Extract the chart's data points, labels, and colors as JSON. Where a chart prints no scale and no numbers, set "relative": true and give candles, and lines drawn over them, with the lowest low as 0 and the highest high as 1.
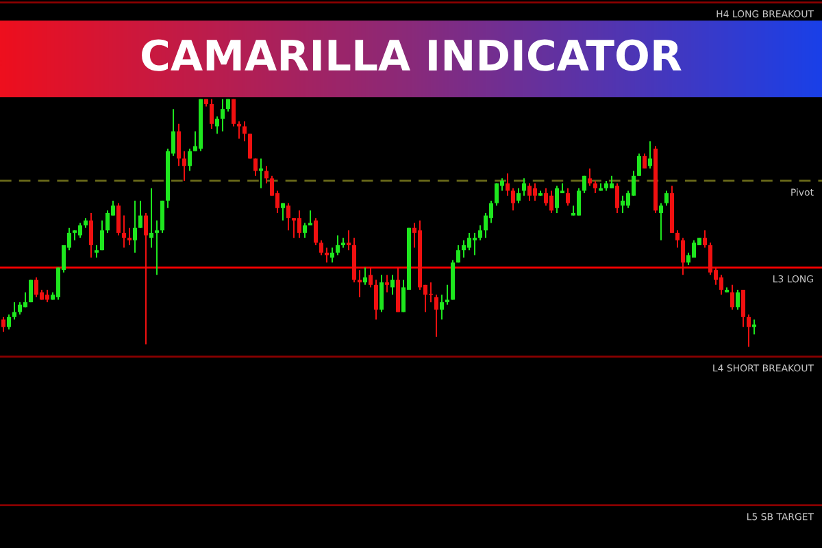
{
  "chart_data": {
    "type": "candlestick",
    "title": "CAMARILLA INDICATOR",
    "relative": true,
    "colors": [
      "#f01010",
      "#1ee61e",
      "#1ee61e",
      "#1ee61e",
      "#1ee61e",
      "#1ee61e",
      "#f01010",
      "#f01010",
      "#f01010",
      "#1ee61e",
      "#1ee61e",
      "#1ee61e",
      "#1ee61e",
      "#1ee61e",
      "#1ee61e",
      "#1ee61e",
      "#f01010",
      "#1ee61e",
      "#1ee61e",
      "#1ee61e",
      "#1ee61e",
      "#f01010",
      "#f01010",
      "#f01010",
      "#1ee61e",
      "#1ee61e",
      "#f01010",
      "#1ee61e",
      "#1ee61e",
      "#1ee61e",
      "#1ee61e",
      "#1ee61e",
      "#f01010",
      "#f01010",
      "#1ee61e",
      "#1ee61e",
      "#1ee61e",
      "#f01010",
      "#f01010",
      "#1ee61e",
      "#1ee61e",
      "#1ee61e",
      "#f01010",
      "#f01010",
      "#f01010",
      "#f01010",
      "#f01010",
      "#1ee61e",
      "#f01010",
      "#f01010",
      "#f01010",
      "#1ee61e",
      "#f01010",
      "#f01010",
      "#f01010",
      "#1ee61e",
      "#1ee61e",
      "#f01010",
      "#f01010",
      "#f01010",
      "#1ee61e",
      "#1ee61e",
      "#1ee61e",
      "#f01010",
      "#f01010",
      "#f01010",
      "#1ee61e",
      "#f01010",
      "#f01010",
      "#1ee61e",
      "#f01010",
      "#1ee61e",
      "#f01010",
      "#1ee61e",
      "#1ee61e",
      "#f01010",
      "#f01010",
      "#f01010",
      "#f01010",
      "#f01010",
      "#1ee61e",
      "#1ee61e",
      "#1ee61e",
      "#1ee61e",
      "#1ee61e",
      "#1ee61e",
      "#1ee61e",
      "#1ee61e",
      "#1ee61e",
      "#1ee61e",
      "#1ee61e",
      "#1ee61e",
      "#f01010",
      "#f01010",
      "#1ee61e",
      "#1ee61e",
      "#f01010",
      "#f01010",
      "#1ee61e",
      "#f01010",
      "#f01010",
      "#1ee61e",
      "#1ee61e",
      "#f01010",
      "#1ee61e",
      "#1ee61e",
      "#1ee61e",
      "#f01010",
      "#f01010",
      "#1ee61e",
      "#1ee61e",
      "#1ee61e",
      "#f01010",
      "#1ee61e",
      "#1ee61e",
      "#1ee61e",
      "#1ee61e",
      "#f01010",
      "#1ee61e",
      "#f01010",
      "#1ee61e",
      "#1ee61e",
      "#f01010",
      "#f01010",
      "#f01010",
      "#1ee61e",
      "#1ee61e",
      "#1ee61e",
      "#f01010",
      "#f01010",
      "#f01010",
      "#f01010",
      "#1ee61e",
      "#f01010",
      "#1ee61e",
      "#f01010",
      "#f01010",
      "#1ee61e"
    ],
    "categories": [
      null,
      null,
      null,
      null,
      null,
      null,
      null,
      null,
      null,
      null,
      null,
      null,
      null,
      null,
      null,
      null,
      null,
      null,
      null,
      null,
      null,
      null,
      null,
      null,
      null,
      null,
      null,
      null,
      null,
      null,
      null,
      null,
      null,
      null,
      null,
      null,
      null,
      null,
      null,
      null,
      null,
      null,
      null,
      null,
      null,
      null,
      null,
      null,
      null,
      null,
      null,
      null,
      null,
      null,
      null,
      null,
      null,
      null,
      null,
      null,
      null,
      null,
      null,
      null,
      null,
      null,
      null,
      null,
      null,
      null,
      null,
      null,
      null,
      null,
      null,
      null,
      null,
      null,
      null,
      null,
      null,
      null,
      null,
      null,
      null,
      null,
      null,
      null,
      null,
      null,
      null,
      null,
      null,
      null,
      null,
      null,
      null,
      null,
      null,
      null,
      null,
      null,
      null,
      null,
      null,
      null,
      null,
      null,
      null,
      null,
      null,
      null,
      null,
      null,
      null,
      null,
      null,
      null,
      null,
      null,
      null,
      null,
      null,
      null,
      null,
      null,
      null,
      null,
      null,
      null,
      null,
      null,
      null,
      null,
      null,
      null,
      null,
      null
    ],
    "ohlc": [
      [
        0.11,
        0.12,
        0.06,
        0.08
      ],
      [
        0.08,
        0.13,
        0.07,
        0.12
      ],
      [
        0.12,
        0.18,
        0.11,
        0.14
      ],
      [
        0.14,
        0.18,
        0.13,
        0.17
      ],
      [
        0.16,
        0.22,
        0.16,
        0.18
      ],
      [
        0.18,
        0.27,
        0.18,
        0.27
      ],
      [
        0.27,
        0.28,
        0.2,
        0.21
      ],
      [
        0.22,
        0.23,
        0.19,
        0.19
      ],
      [
        0.21,
        0.23,
        0.18,
        0.19
      ],
      [
        0.19,
        0.22,
        0.19,
        0.21
      ],
      [
        0.2,
        0.32,
        0.19,
        0.32
      ],
      [
        0.31,
        0.41,
        0.3,
        0.41
      ],
      [
        0.4,
        0.48,
        0.39,
        0.46
      ],
      [
        0.46,
        0.47,
        0.43,
        0.47
      ],
      [
        0.45,
        0.5,
        0.44,
        0.49
      ],
      [
        0.49,
        0.52,
        0.48,
        0.51
      ],
      [
        0.51,
        0.54,
        0.36,
        0.41
      ],
      [
        0.38,
        0.41,
        0.36,
        0.39
      ],
      [
        0.39,
        0.51,
        0.39,
        0.47
      ],
      [
        0.47,
        0.55,
        0.46,
        0.54
      ],
      [
        0.53,
        0.59,
        0.53,
        0.57
      ],
      [
        0.57,
        0.58,
        0.45,
        0.46
      ],
      [
        0.46,
        0.53,
        0.4,
        0.44
      ],
      [
        0.44,
        0.48,
        0.41,
        0.43
      ],
      [
        0.43,
        0.59,
        0.38,
        0.48
      ],
      [
        0.48,
        0.59,
        0.48,
        0.53
      ],
      [
        0.53,
        0.54,
        0.01,
        0.45
      ],
      [
        0.44,
        0.64,
        0.4,
        0.46
      ],
      [
        0.46,
        0.51,
        0.29,
        0.47
      ],
      [
        0.47,
        0.59,
        0.46,
        0.59
      ],
      [
        0.59,
        0.8,
        0.56,
        0.79
      ],
      [
        0.78,
        0.96,
        0.77,
        0.87
      ],
      [
        0.87,
        0.9,
        0.73,
        0.76
      ],
      [
        0.76,
        0.79,
        0.67,
        0.73
      ],
      [
        0.73,
        0.8,
        0.71,
        0.79
      ],
      [
        0.79,
        0.87,
        0.79,
        0.81
      ],
      [
        0.8,
        1,
        0.79,
        1
      ],
      [
        1,
        1,
        0.97,
        0.98
      ],
      [
        0.98,
        1,
        0.88,
        0.9
      ],
      [
        0.89,
        0.93,
        0.86,
        0.92
      ],
      [
        0.92,
        1,
        0.87,
        0.96
      ],
      [
        0.96,
        1,
        0.95,
        1
      ],
      [
        1,
        1,
        0.89,
        0.9
      ],
      [
        0.9,
        0.91,
        0.84,
        0.89
      ],
      [
        0.89,
        0.91,
        0.83,
        0.86
      ],
      [
        0.86,
        0.86,
        0.76,
        0.76
      ],
      [
        0.76,
        0.76,
        0.69,
        0.71
      ],
      [
        0.71,
        0.76,
        0.64,
        0.72
      ],
      [
        0.71,
        0.73,
        0.66,
        0.68
      ],
      [
        0.68,
        0.69,
        0.61,
        0.61
      ],
      [
        0.62,
        0.63,
        0.54,
        0.56
      ],
      [
        0.56,
        0.58,
        0.51,
        0.58
      ],
      [
        0.57,
        0.58,
        0.47,
        0.52
      ],
      [
        0.52,
        0.52,
        0.44,
        0.51
      ],
      [
        0.52,
        0.55,
        0.44,
        0.46
      ],
      [
        0.46,
        0.5,
        0.44,
        0.49
      ],
      [
        0.49,
        0.55,
        0.49,
        0.5
      ],
      [
        0.51,
        0.52,
        0.41,
        0.42
      ],
      [
        0.42,
        0.43,
        0.37,
        0.38
      ],
      [
        0.38,
        0.4,
        0.34,
        0.37
      ],
      [
        0.36,
        0.4,
        0.34,
        0.38
      ],
      [
        0.38,
        0.45,
        0.37,
        0.41
      ],
      [
        0.41,
        0.44,
        0.4,
        0.42
      ],
      [
        0.42,
        0.47,
        0.39,
        0.41
      ],
      [
        0.41,
        0.44,
        0.26,
        0.27
      ],
      [
        0.27,
        0.31,
        0.2,
        0.26
      ],
      [
        0.26,
        0.32,
        0.25,
        0.28
      ],
      [
        0.29,
        0.32,
        0.24,
        0.25
      ],
      [
        0.25,
        0.27,
        0.11,
        0.15
      ],
      [
        0.15,
        0.29,
        0.14,
        0.26
      ],
      [
        0.26,
        0.29,
        0.22,
        0.25
      ],
      [
        0.24,
        0.29,
        0.21,
        0.27
      ],
      [
        0.27,
        0.32,
        0.14,
        0.14
      ],
      [
        0.14,
        0.27,
        0.14,
        0.24
      ],
      [
        0.23,
        0.48,
        0.23,
        0.48
      ],
      [
        0.48,
        0.5,
        0.4,
        0.46
      ],
      [
        0.47,
        0.51,
        0.23,
        0.24
      ],
      [
        0.25,
        0.25,
        0.14,
        0.21
      ],
      [
        0.21,
        0.26,
        0.18,
        0.21
      ],
      [
        0.2,
        0.21,
        0.04,
        0.15
      ],
      [
        0.15,
        0.21,
        0.11,
        0.18
      ],
      [
        0.18,
        0.25,
        0.17,
        0.19
      ],
      [
        0.19,
        0.35,
        0.19,
        0.34
      ],
      [
        0.34,
        0.41,
        0.34,
        0.39
      ],
      [
        0.39,
        0.43,
        0.36,
        0.41
      ],
      [
        0.4,
        0.46,
        0.39,
        0.44
      ],
      [
        0.43,
        0.46,
        0.37,
        0.44
      ],
      [
        0.44,
        0.49,
        0.43,
        0.47
      ],
      [
        0.47,
        0.54,
        0.44,
        0.53
      ],
      [
        0.52,
        0.59,
        0.5,
        0.58
      ],
      [
        0.58,
        0.66,
        0.57,
        0.66
      ],
      [
        0.65,
        0.68,
        0.63,
        0.67
      ],
      [
        0.66,
        0.7,
        0.61,
        0.63
      ],
      [
        0.63,
        0.64,
        0.55,
        0.58
      ],
      [
        0.59,
        0.64,
        0.58,
        0.62
      ],
      [
        0.63,
        0.68,
        0.61,
        0.66
      ],
      [
        0.65,
        0.66,
        0.59,
        0.61
      ],
      [
        0.64,
        0.66,
        0.59,
        0.61
      ],
      [
        0.61,
        0.63,
        0.61,
        0.62
      ],
      [
        0.62,
        0.64,
        0.57,
        0.58
      ],
      [
        0.61,
        0.63,
        0.54,
        0.55
      ],
      [
        0.56,
        0.65,
        0.54,
        0.64
      ],
      [
        0.62,
        0.66,
        0.62,
        0.63
      ],
      [
        0.62,
        0.64,
        0.57,
        0.58
      ],
      [
        0.53,
        0.57,
        0.53,
        0.54
      ],
      [
        0.53,
        0.64,
        0.53,
        0.63
      ],
      [
        0.63,
        0.69,
        0.62,
        0.69
      ],
      [
        0.68,
        0.72,
        0.65,
        0.66
      ],
      [
        0.66,
        0.67,
        0.62,
        0.64
      ],
      [
        0.63,
        0.66,
        0.63,
        0.64
      ],
      [
        0.64,
        0.67,
        0.63,
        0.66
      ],
      [
        0.64,
        0.69,
        0.64,
        0.66
      ],
      [
        0.65,
        0.66,
        0.54,
        0.56
      ],
      [
        0.57,
        0.61,
        0.54,
        0.59
      ],
      [
        0.57,
        0.63,
        0.56,
        0.62
      ],
      [
        0.61,
        0.71,
        0.61,
        0.69
      ],
      [
        0.69,
        0.78,
        0.69,
        0.77
      ],
      [
        0.77,
        0.78,
        0.72,
        0.72
      ],
      [
        0.73,
        0.83,
        0.72,
        0.76
      ],
      [
        0.8,
        0.81,
        0.54,
        0.55
      ],
      [
        0.54,
        0.58,
        0.43,
        0.57
      ],
      [
        0.58,
        0.63,
        0.57,
        0.62
      ],
      [
        0.62,
        0.65,
        0.46,
        0.46
      ],
      [
        0.46,
        0.47,
        0.4,
        0.43
      ],
      [
        0.43,
        0.44,
        0.29,
        0.34
      ],
      [
        0.34,
        0.38,
        0.33,
        0.37
      ],
      [
        0.36,
        0.43,
        0.36,
        0.42
      ],
      [
        0.41,
        0.44,
        0.41,
        0.44
      ],
      [
        0.44,
        0.47,
        0.4,
        0.41
      ],
      [
        0.41,
        0.42,
        0.29,
        0.3
      ],
      [
        0.31,
        0.32,
        0.25,
        0.27
      ],
      [
        0.28,
        0.29,
        0.21,
        0.23
      ],
      [
        0.22,
        0.24,
        0.22,
        0.23
      ],
      [
        0.22,
        0.25,
        0.15,
        0.16
      ],
      [
        0.16,
        0.23,
        0.15,
        0.22
      ],
      [
        0.23,
        0.23,
        0.08,
        0.12
      ],
      [
        0.12,
        0.13,
        0,
        0.08
      ],
      [
        0.08,
        0.11,
        0.05,
        0.09
      ]
    ],
    "ref_lines": [
      {
        "axis": "y",
        "value": 1.39,
        "label": "H4 LONG BREAKOUT",
        "color": "#8b0000"
      },
      {
        "axis": "y",
        "value": 0.67,
        "label": "Pivot",
        "color": "#6b6b1a",
        "line_style": "dashed"
      },
      {
        "axis": "y",
        "value": 0.32,
        "label": "L3 LONG",
        "color": "#ff0000"
      },
      {
        "axis": "y",
        "value": -0.04,
        "label": "L4 SHORT BREAKOUT",
        "color": "#8b0000"
      },
      {
        "axis": "y",
        "value": -0.64,
        "label": "L5 SB TARGET",
        "color": "#8b0000"
      }
    ]
  }
}
